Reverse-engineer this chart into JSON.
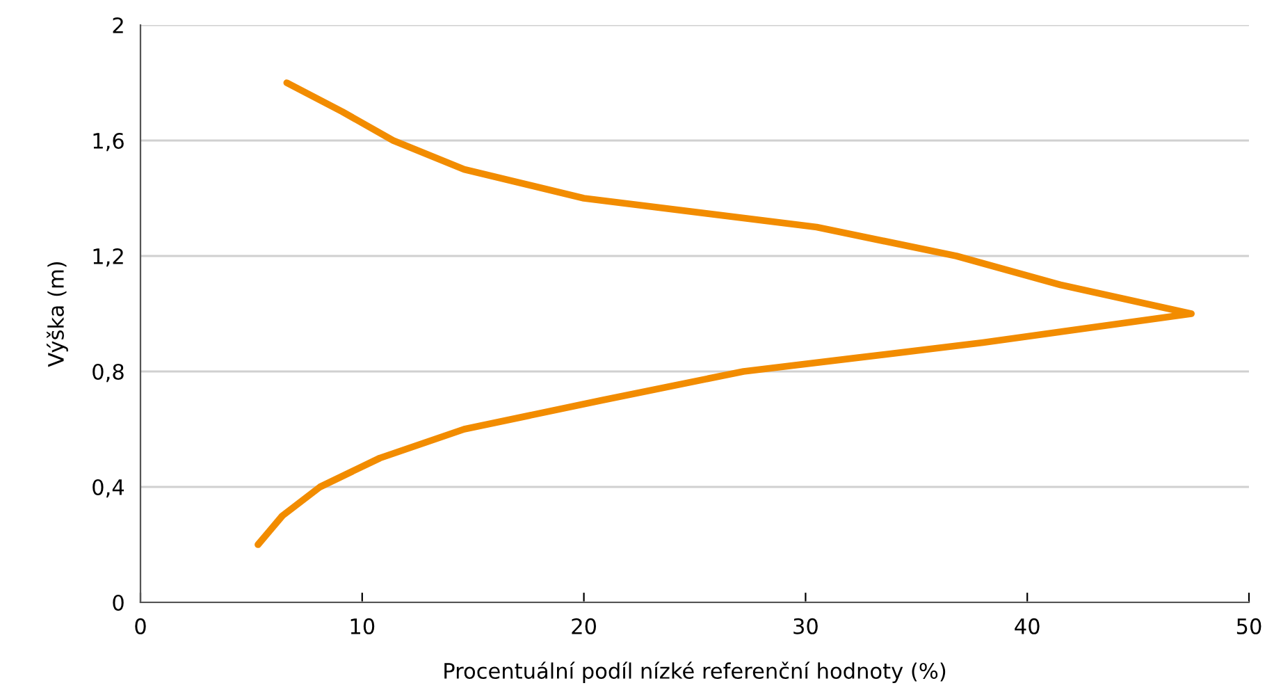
{
  "chart_data": {
    "type": "line",
    "xlabel": "Procentuální podíl nízké referenční hodnoty (%)",
    "ylabel": "Výška (m)",
    "series": [
      {
        "color": "#f28c00",
        "x": [
          5.3,
          6.4,
          8.1,
          10.8,
          14.6,
          20.8,
          27.2,
          38.0,
          47.4,
          41.5,
          36.8,
          30.5,
          20.0,
          14.6,
          11.4,
          9.1,
          6.6
        ],
        "values": [
          0.2,
          0.3,
          0.4,
          0.5,
          0.6,
          0.7,
          0.8,
          0.9,
          1.0,
          1.1,
          1.2,
          1.3,
          1.4,
          1.5,
          1.6,
          1.7,
          1.8
        ]
      }
    ],
    "xlim": [
      0,
      50
    ],
    "xticks": [
      0,
      10,
      20,
      30,
      40,
      50
    ],
    "ylim": [
      0,
      2
    ],
    "yticks": [
      0,
      {
        "value": 0.4,
        "label": "0,4"
      },
      {
        "value": 0.8,
        "label": "0,8"
      },
      {
        "value": 1.2,
        "label": "1,2"
      },
      {
        "value": 1.6,
        "label": "1,6"
      },
      2
    ],
    "grid": "y",
    "legend": false,
    "marker": "none",
    "line_style": "solid"
  }
}
